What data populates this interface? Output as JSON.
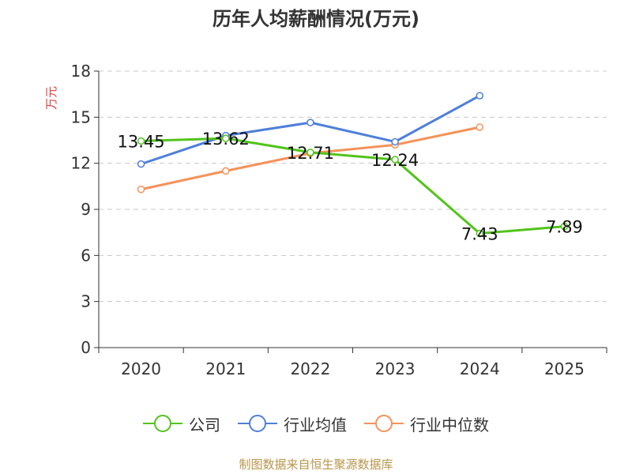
{
  "chart_data": {
    "type": "line",
    "title": "历年人均薪酬情况(万元)",
    "ylabel": "万元",
    "categories": [
      "2020",
      "2021",
      "2022",
      "2023",
      "2024",
      "2025"
    ],
    "y_ticks": [
      "0",
      "3",
      "6",
      "9",
      "12",
      "15",
      "18"
    ],
    "ylim": [
      0,
      18
    ],
    "grid": true,
    "legend_position": "bottom",
    "series": [
      {
        "name": "公司",
        "color": "#52c41a",
        "values": [
          13.45,
          13.62,
          12.71,
          12.24,
          7.43,
          7.89
        ],
        "labels": [
          "13.45",
          "13.62",
          "12.71",
          "12.24",
          "7.43",
          "7.89"
        ]
      },
      {
        "name": "行业均值",
        "color": "#4e7fdb",
        "values": [
          11.95,
          13.8,
          14.65,
          13.4,
          16.4,
          null
        ],
        "labels": null
      },
      {
        "name": "行业中位数",
        "color": "#f5925a",
        "values": [
          10.3,
          11.5,
          12.65,
          13.2,
          14.35,
          null
        ],
        "labels": null
      }
    ]
  },
  "footer": {
    "source": "制图数据来自恒生聚源数据库"
  }
}
